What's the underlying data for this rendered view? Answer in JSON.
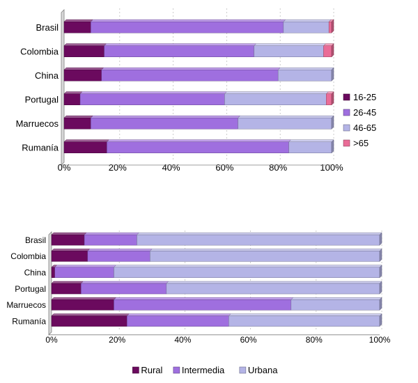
{
  "chart_data": [
    {
      "type": "bar",
      "orientation": "horizontal",
      "stacked": "percent",
      "categories": [
        "Brasil",
        "Colombia",
        "China",
        "Portugal",
        "Marruecos",
        "Rumanía"
      ],
      "series": [
        {
          "name": "16-25",
          "color": "#6b0a5e",
          "values": [
            10,
            15,
            14,
            6,
            10,
            16
          ]
        },
        {
          "name": "26-45",
          "color": "#9f6fdf",
          "values": [
            72,
            56,
            66,
            54,
            55,
            68
          ]
        },
        {
          "name": "46-65",
          "color": "#b4b4e6",
          "values": [
            17,
            26,
            20,
            38,
            35,
            16
          ]
        },
        {
          "name": ">65",
          "color": "#ea6c97",
          "values": [
            1,
            3,
            0,
            2,
            0,
            0
          ]
        }
      ],
      "xlim": [
        0,
        100
      ],
      "xticks": [
        "0%",
        "20%",
        "40%",
        "60%",
        "80%",
        "100%"
      ],
      "legend": "right",
      "grid": true
    },
    {
      "type": "bar",
      "orientation": "horizontal",
      "stacked": "percent",
      "categories": [
        "Brasil",
        "Colombia",
        "China",
        "Portugal",
        "Marruecos",
        "Rumanía"
      ],
      "series": [
        {
          "name": "Rural",
          "color": "#6b0a5e",
          "values": [
            10,
            11,
            1,
            9,
            19,
            23
          ]
        },
        {
          "name": "Intermedia",
          "color": "#9f6fdf",
          "values": [
            16,
            19,
            18,
            26,
            54,
            31
          ]
        },
        {
          "name": "Urbana",
          "color": "#b4b4e6",
          "values": [
            74,
            70,
            81,
            65,
            27,
            46
          ]
        }
      ],
      "xlim": [
        0,
        100
      ],
      "xticks": [
        "0%",
        "20%",
        "40%",
        "60%",
        "80%",
        "100%"
      ],
      "legend": "bottom",
      "grid": true
    }
  ]
}
